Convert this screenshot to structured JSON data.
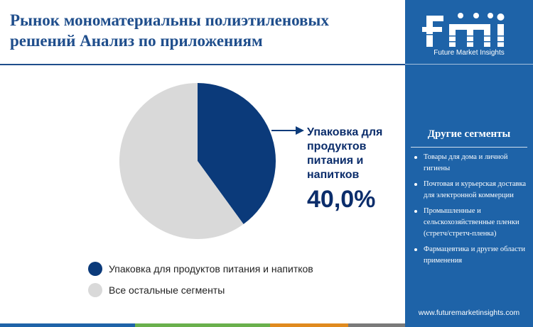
{
  "header": {
    "title": "Рынок мономатериальны полиэтиленовых решений Анализ по приложениям"
  },
  "chart_data": {
    "type": "pie",
    "title": "Рынок мономатериальны полиэтиленовых решений Анализ по приложениям",
    "slices": [
      {
        "label": "Упаковка для продуктов питания и напитков",
        "value": 40.0,
        "color": "#0b3a7a"
      },
      {
        "label": "Все остальные сегменты",
        "value": 60.0,
        "color": "#d9d9d9"
      }
    ],
    "callout": {
      "label": "Упаковка для продуктов питания и напитков",
      "value_text": "40,0%"
    },
    "legend_position": "bottom-left"
  },
  "legend": {
    "items": [
      {
        "label": "Упаковка для продуктов питания и напитков",
        "color": "#0b3a7a"
      },
      {
        "label": "Все остальные сегменты",
        "color": "#d9d9d9"
      }
    ]
  },
  "sidebar": {
    "logo_text": "Future Market Insights",
    "logo_icon": "fmi-logo-icon",
    "heading": "Другие сегменты",
    "items": [
      "Товары для дома и личной гигиены",
      "Почтовая и курьерская доставка для электронной коммерции",
      "Промышленные и сельскохозяйственные пленки (стретч/стретч-пленка)",
      "Фармацевтика и другие области применения"
    ],
    "website": "www.futuremarketinsights.com"
  },
  "colors": {
    "brand_blue": "#1e63a8",
    "title_blue": "#1f4e8c",
    "accent_navy": "#0b3a7a",
    "bottom_bar": [
      "#1e63a8",
      "#6ab04c",
      "#e08a1e",
      "#7a7a7a"
    ]
  }
}
